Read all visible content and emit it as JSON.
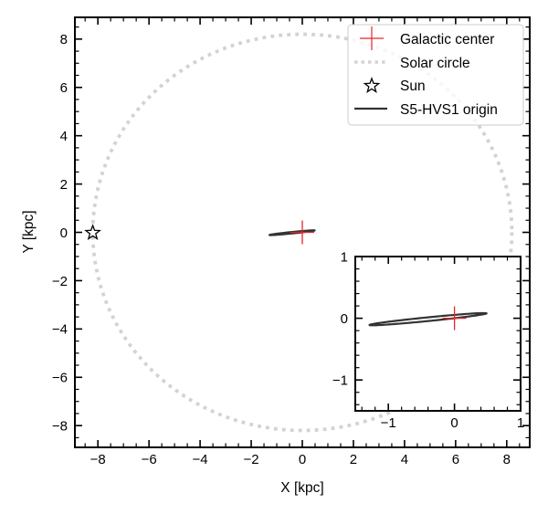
{
  "chart_data": {
    "type": "line",
    "title": "",
    "xlabel": "X [kpc]",
    "ylabel": "Y [kpc]",
    "xlim": [
      -8.9,
      8.9
    ],
    "ylim": [
      -8.9,
      8.9
    ],
    "xticks": [
      -8,
      -6,
      -4,
      -2,
      0,
      2,
      4,
      6,
      8
    ],
    "yticks": [
      -8,
      -6,
      -4,
      -2,
      0,
      2,
      4,
      6,
      8
    ],
    "xtick_labels": [
      "−8",
      "−6",
      "−4",
      "−2",
      "0",
      "2",
      "4",
      "6",
      "8"
    ],
    "ytick_labels": [
      "−8",
      "−6",
      "−4",
      "−2",
      "0",
      "2",
      "4",
      "6",
      "8"
    ],
    "minor_tick_step": 0.5,
    "grid": false,
    "legend_position": "top-right",
    "series": [
      {
        "name": "Galactic center",
        "kind": "marker",
        "marker": "plus",
        "color": "#e8242b",
        "x": [
          0
        ],
        "y": [
          0
        ]
      },
      {
        "name": "Solar circle",
        "kind": "circle",
        "linestyle": "dotted",
        "color": "#d3d3d3",
        "center": [
          0,
          0
        ],
        "radius": 8.2
      },
      {
        "name": "Sun",
        "kind": "marker",
        "marker": "star-open",
        "color": "#000000",
        "x": [
          -8.2
        ],
        "y": [
          0
        ]
      },
      {
        "name": "S5-HVS1 origin",
        "kind": "closed-contour",
        "color": "#333333",
        "x_extent": [
          -1.29,
          0.49
        ],
        "y_at_ends": [
          -0.11,
          0.08
        ],
        "half_width": 0.03
      }
    ],
    "legend": [
      "Galactic center",
      "Solar circle",
      "Sun",
      "S5-HVS1 origin"
    ],
    "inset": {
      "xlim": [
        -1.5,
        1.0
      ],
      "ylim": [
        -1.5,
        1.0
      ],
      "xticks": [
        -1,
        0,
        1
      ],
      "yticks": [
        -1,
        0,
        1
      ],
      "xtick_labels": [
        "−1",
        "0",
        "1"
      ],
      "ytick_labels": [
        "−1",
        "0",
        "1"
      ],
      "minor_tick_step": 0.2,
      "shows": [
        "Galactic center",
        "S5-HVS1 origin"
      ]
    }
  }
}
